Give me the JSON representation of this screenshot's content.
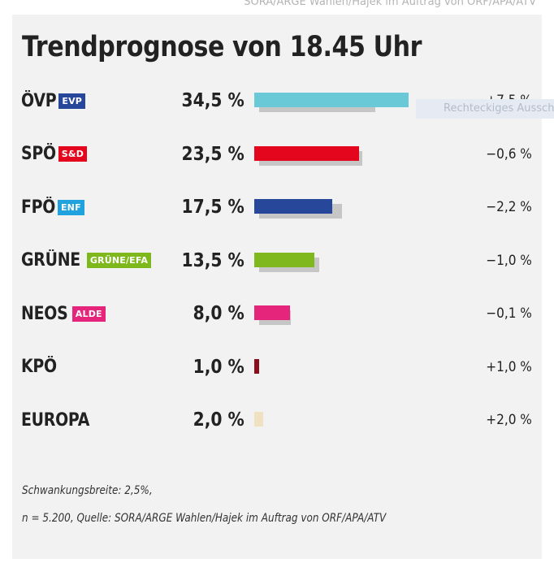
{
  "credit_top": "SORA/ARGE Wahlen/Hajek im Auftrag von ORF/APA/ATV",
  "tooltip": "Rechteckiges Ausschnitt",
  "chart_data": {
    "type": "bar",
    "title": "Trendprognose von 18.45 Uhr",
    "xlabel": "",
    "ylabel": "",
    "xlim": [
      0,
      40
    ],
    "categories": [
      "ÖVP",
      "SPÖ",
      "FPÖ",
      "GRÜNE",
      "NEOS",
      "KPÖ",
      "EUROPA"
    ],
    "series": [
      {
        "values": [
          34.5,
          23.5,
          17.5,
          13.5,
          8.0,
          1.0,
          2.0
        ]
      },
      {
        "values": [
          27.0,
          24.1,
          19.7,
          14.5,
          8.1,
          0.0,
          0.0
        ]
      }
    ],
    "value_labels": [
      "34,5 %",
      "23,5 %",
      "17,5 %",
      "13,5 %",
      "8,0 %",
      "1,0 %",
      "2,0 %"
    ],
    "change_labels": [
      "+7,5 %",
      "−0,6 %",
      "−2,2 %",
      "−1,0 %",
      "−0,1 %",
      "+1,0 %",
      "+2,0 %"
    ],
    "badges": [
      "EVP",
      "S&D",
      "ENF",
      "GRÜNE/EFA",
      "ALDE",
      "",
      ""
    ],
    "colors": [
      "#6ac9d6",
      "#e3061d",
      "#27479b",
      "#7fb81d",
      "#e5247c",
      "#8b0e1d",
      "#efe1c2"
    ],
    "badge_colors": [
      "#27479b",
      "#e3061d",
      "#1fa2dd",
      "#7fb81d",
      "#e5247c",
      "",
      ""
    ],
    "shadow_color": "#c6c6c6"
  },
  "footnote": {
    "line1": "Schwankungsbreite: 2,5%,",
    "line2": "n = 5.200, Quelle: SORA/ARGE Wahlen/Hajek im Auftrag von ORF/APA/ATV"
  }
}
